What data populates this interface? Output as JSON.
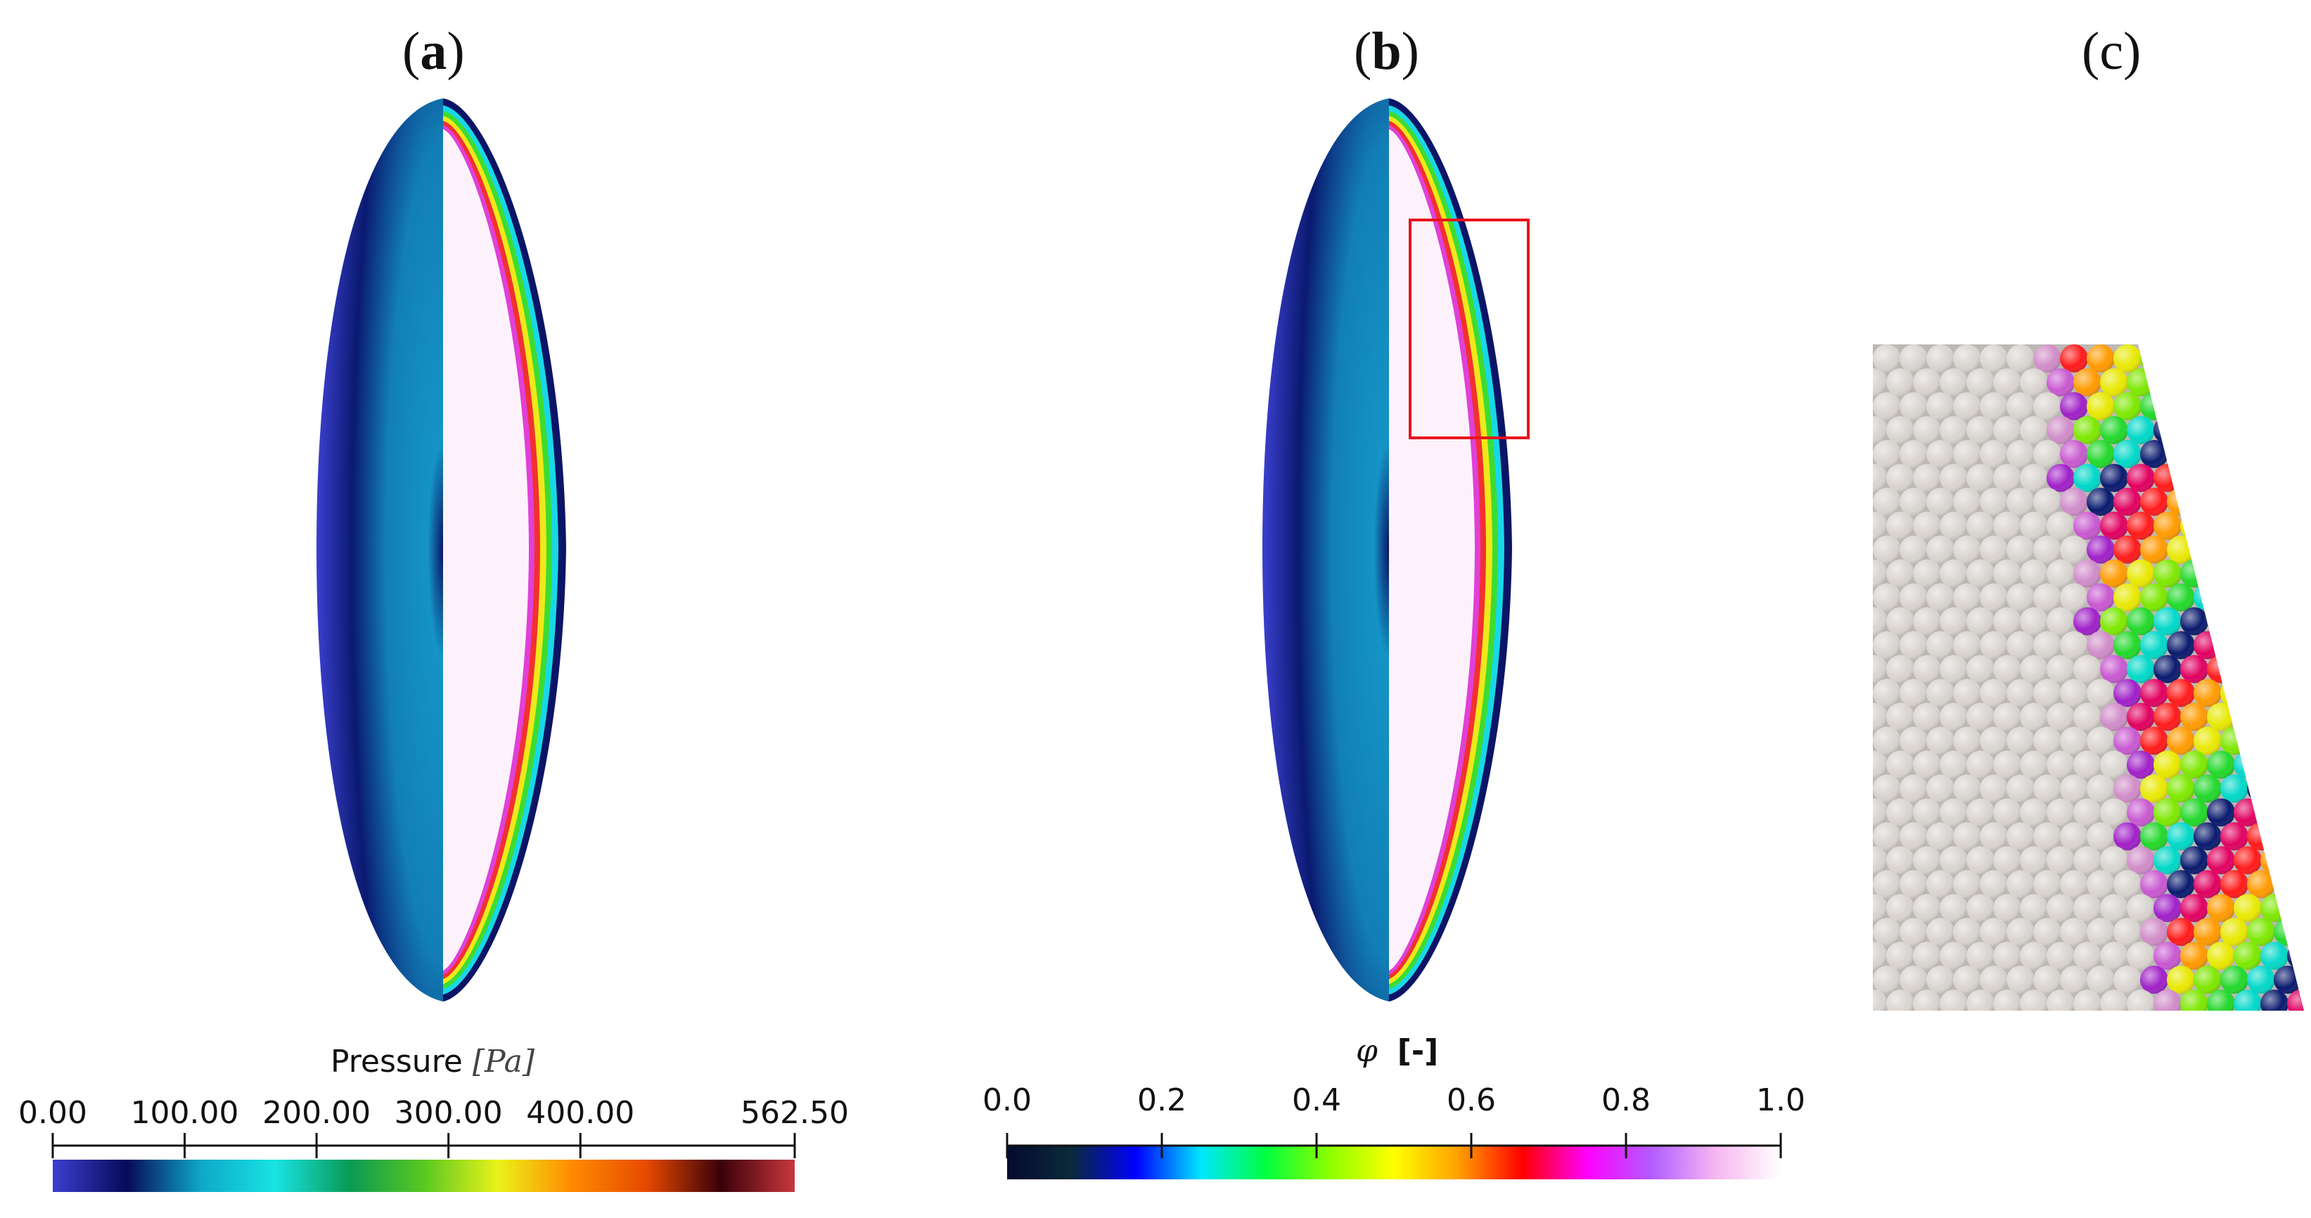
{
  "panels": [
    {
      "label_open": "(",
      "label_letter": "a",
      "label_close": ")"
    },
    {
      "label_open": "(",
      "label_letter": "b",
      "label_close": ")"
    },
    {
      "label_open": "(",
      "label_letter": "c",
      "label_close": ")"
    }
  ],
  "colorbar_pressure": {
    "title_main": "Pressure ",
    "title_unit": "[Pa]",
    "ticks": [
      "0.00",
      "100.00",
      "200.00",
      "300.00",
      "400.00",
      "562.50"
    ],
    "tick_values": [
      0,
      100,
      200,
      300,
      400,
      562.5
    ],
    "range": [
      0,
      562.5
    ],
    "colors": [
      "#3b3fcf",
      "#070a5a",
      "#0ea8c9",
      "#18e3e3",
      "#0a9a55",
      "#59c820",
      "#eaf21a",
      "#ff8a00",
      "#e64a00",
      "#3a0008",
      "#c8383d"
    ]
  },
  "colorbar_phi": {
    "title_symbol": "φ",
    "title_unit": "[-]",
    "ticks": [
      "0.0",
      "0.2",
      "0.4",
      "0.6",
      "0.8",
      "1.0"
    ],
    "tick_values": [
      0,
      0.2,
      0.4,
      0.6,
      0.8,
      1.0
    ],
    "range": [
      0,
      1
    ],
    "colors": [
      "#050a2e",
      "#0a2a3a",
      "#0000ff",
      "#00e5ff",
      "#00ff40",
      "#8cff00",
      "#ffff00",
      "#ffa000",
      "#ff0000",
      "#ff00ff",
      "#b25cff",
      "#f6b8f0",
      "#ffffff"
    ]
  },
  "colors": {
    "droplet_outer": "#3a3fcc",
    "droplet_dark": "#070c5e",
    "droplet_core": "#1596c4",
    "interior": "#fdf2fb",
    "highlight_box": "#e8141c",
    "particle": "#d8d3cf"
  }
}
